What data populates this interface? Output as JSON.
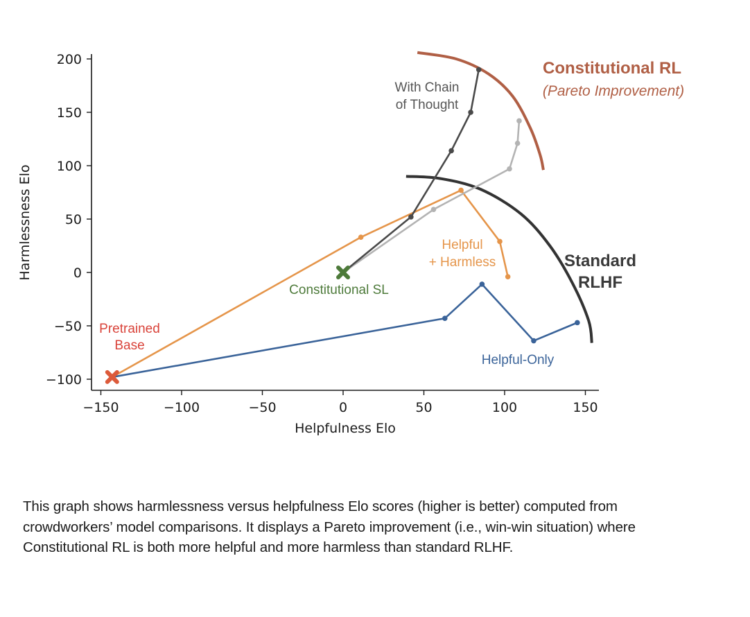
{
  "chart_data": {
    "type": "line",
    "title": "",
    "xlabel": "Helpfulness Elo",
    "ylabel": "Harmlessness Elo",
    "xlim": [
      -157,
      158
    ],
    "ylim": [
      -110,
      202
    ],
    "xticks": [
      -150,
      -100,
      -50,
      0,
      50,
      100,
      150
    ],
    "yticks": [
      -100,
      -50,
      0,
      50,
      100,
      150,
      200
    ],
    "xtick_labels": [
      "−150",
      "−100",
      "−50",
      "0",
      "50",
      "100",
      "150"
    ],
    "ytick_labels": [
      "−100",
      "−50",
      "0",
      "50",
      "100",
      "150",
      "200"
    ],
    "grid": false,
    "series": [
      {
        "name": "Helpful-Only",
        "color": "#3a6399",
        "points": [
          [
            -143,
            -98
          ],
          [
            63,
            -43
          ],
          [
            86,
            -11
          ],
          [
            118,
            -64
          ],
          [
            145,
            -47
          ]
        ]
      },
      {
        "name": "Helpful + Harmless",
        "color": "#e5954a",
        "points": [
          [
            -143,
            -98
          ],
          [
            11,
            33
          ],
          [
            73,
            77
          ],
          [
            97,
            29
          ],
          [
            102,
            -4
          ]
        ]
      },
      {
        "name": "Constitutional RL",
        "color": "#b3b3b3",
        "points": [
          [
            0,
            0
          ],
          [
            56,
            59
          ],
          [
            103,
            97
          ],
          [
            108,
            121
          ],
          [
            109,
            142
          ]
        ]
      },
      {
        "name": "With Chain of Thought",
        "color": "#4a4a4a",
        "points": [
          [
            0,
            0
          ],
          [
            42,
            52
          ],
          [
            67,
            114
          ],
          [
            79,
            150
          ],
          [
            84,
            190
          ]
        ]
      }
    ],
    "markers": [
      {
        "name": "Pretrained Base",
        "x": -143,
        "y": -98,
        "color": "#dc5a3a"
      },
      {
        "name": "Constitutional SL",
        "x": 0,
        "y": 0,
        "color": "#4d7a3a"
      }
    ],
    "frontiers": [
      {
        "name": "Standard RLHF",
        "color": "#333333",
        "points": [
          [
            39,
            90
          ],
          [
            60,
            88
          ],
          [
            85,
            78
          ],
          [
            110,
            55
          ],
          [
            128,
            25
          ],
          [
            142,
            -10
          ],
          [
            152,
            -45
          ],
          [
            154,
            -66
          ]
        ]
      },
      {
        "name": "Constitutional RL (Pareto Improvement)",
        "color": "#b05f45",
        "points": [
          [
            46,
            206
          ],
          [
            70,
            200
          ],
          [
            90,
            186
          ],
          [
            105,
            165
          ],
          [
            116,
            135
          ],
          [
            122,
            110
          ],
          [
            124,
            96
          ]
        ]
      }
    ],
    "annotations": {
      "pretrained_base": [
        "Pretrained",
        "Base"
      ],
      "constitutional_sl": "Constitutional SL",
      "helpful_harmless": [
        "Helpful",
        "+ Harmless"
      ],
      "helpful_only": "Helpful-Only",
      "chain_of_thought": [
        "With Chain",
        "of Thought"
      ],
      "standard_rlhf": [
        "Standard",
        "RLHF"
      ],
      "constitutional_rl": "Constitutional RL",
      "pareto": "(Pareto Improvement)"
    }
  },
  "caption": "This graph shows harmlessness versus helpfulness Elo scores (higher is better) computed from crowdworkers’ model comparisons. It displays a Pareto improvement (i.e., win-win situation) where Constitutional RL is both more helpful and more harmless than standard RLHF."
}
